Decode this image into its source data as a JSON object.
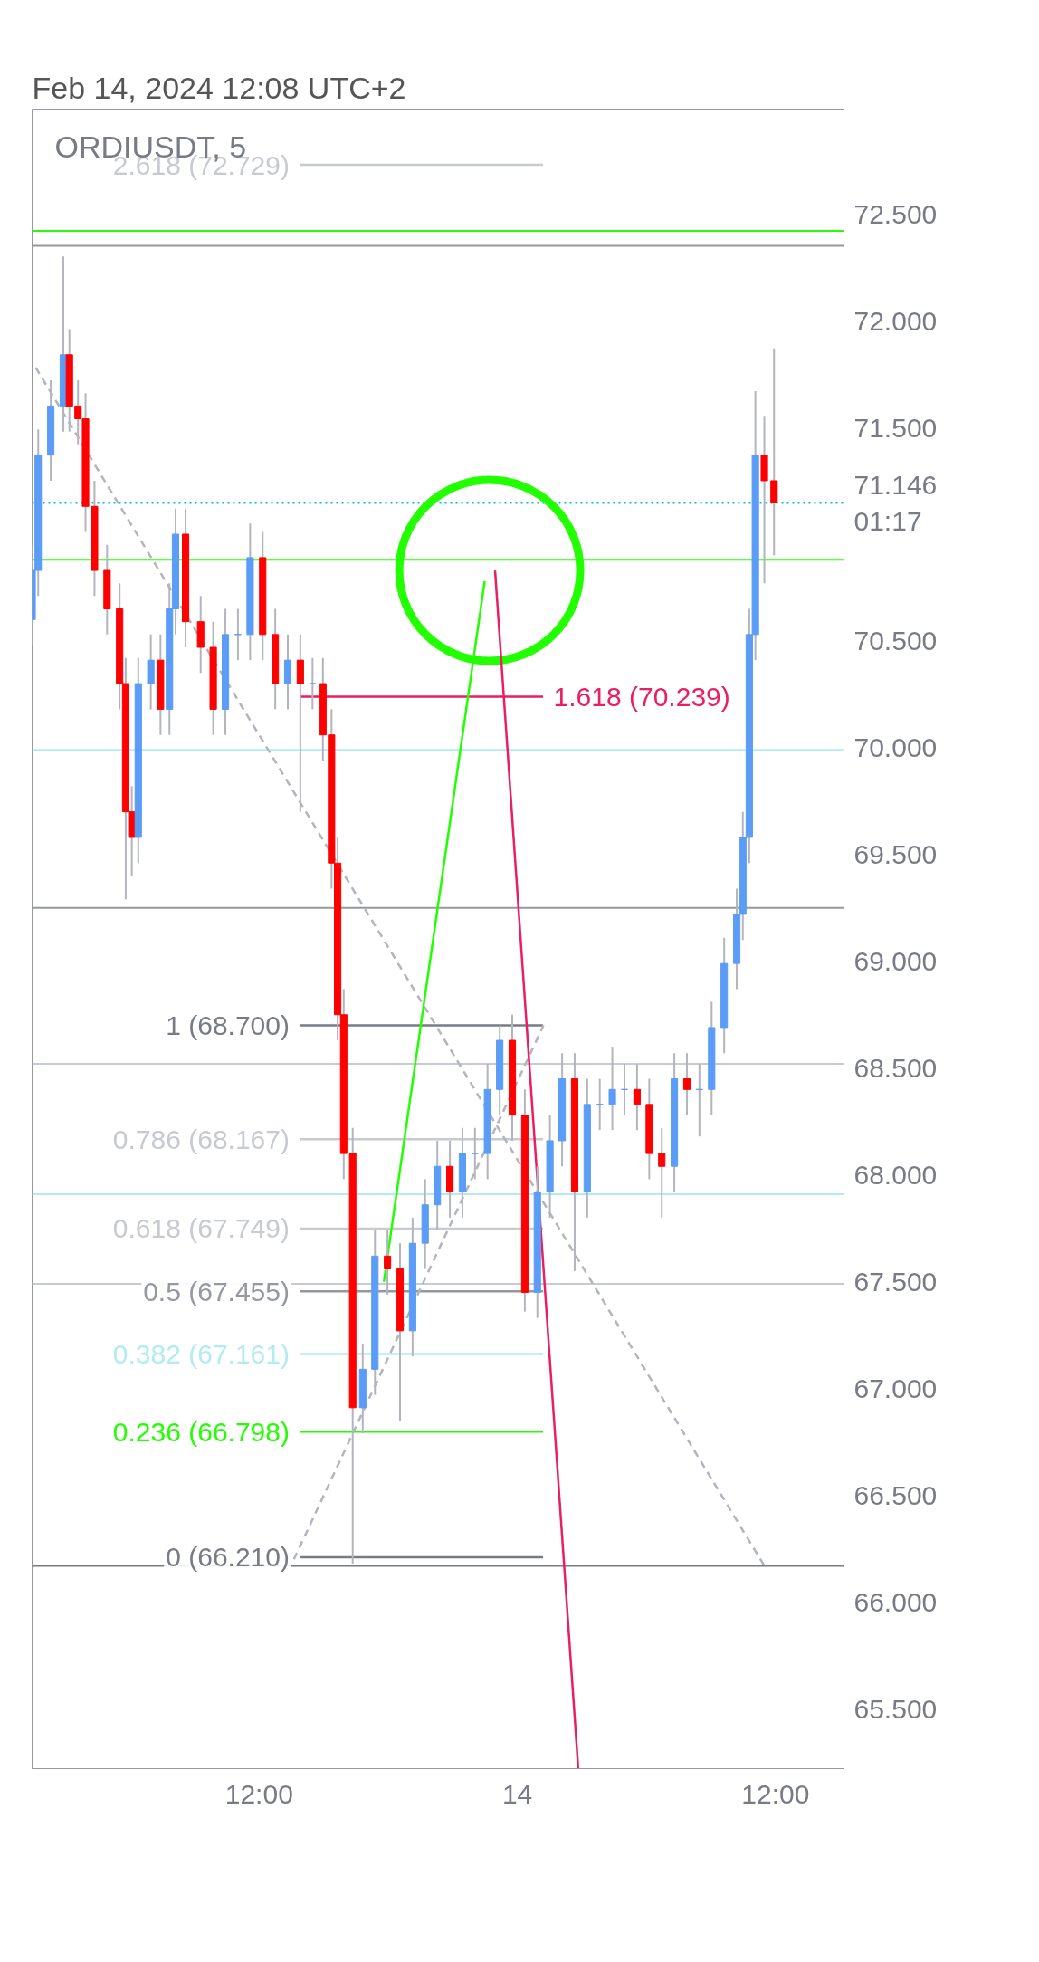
{
  "chart_data": {
    "type": "candlestick",
    "title": "ORDIUSDT, 5",
    "annotations": [
      "Feb 14, 2024 12:08 UTC+2"
    ],
    "x": [
      "2024-02-13T01:27",
      "2024-02-13T01:44",
      "2024-02-13T02:19",
      "2024-02-13T02:54",
      "2024-02-13T03:11",
      "2024-02-13T03:35",
      "2024-02-13T03:56",
      "2024-02-13T04:21",
      "2024-02-13T04:56",
      "2024-02-13T05:31",
      "2024-02-13T05:48",
      "2024-02-13T06:05",
      "2024-02-13T06:23",
      "2024-02-13T06:58",
      "2024-02-13T07:25",
      "2024-02-13T07:50",
      "2024-02-13T08:07",
      "2024-02-13T08:35",
      "2024-02-13T09:17",
      "2024-02-13T09:52",
      "2024-02-13T10:26",
      "2024-02-13T11:01",
      "2024-02-13T11:35",
      "2024-02-13T12:10",
      "2024-02-13T12:45",
      "2024-02-13T13:20",
      "2024-02-13T13:55",
      "2024-02-13T14:29",
      "2024-02-13T14:58",
      "2024-02-13T15:22",
      "2024-02-13T15:39",
      "2024-02-13T15:56",
      "2024-02-13T16:21",
      "2024-02-13T16:49",
      "2024-02-13T17:23",
      "2024-02-13T17:58",
      "2024-02-13T18:33",
      "2024-02-13T19:08",
      "2024-02-13T19:43",
      "2024-02-13T20:17",
      "2024-02-13T20:52",
      "2024-02-13T21:27",
      "2024-02-13T22:02",
      "2024-02-13T22:37",
      "2024-02-13T23:11",
      "2024-02-13T23:46",
      "2024-02-14T00:21",
      "2024-02-14T00:56",
      "2024-02-14T01:31",
      "2024-02-14T02:05",
      "2024-02-14T02:40",
      "2024-02-14T03:15",
      "2024-02-14T03:50",
      "2024-02-14T04:25",
      "2024-02-14T04:59",
      "2024-02-14T05:34",
      "2024-02-14T06:08",
      "2024-02-14T06:43",
      "2024-02-14T07:18",
      "2024-02-14T07:53",
      "2024-02-14T08:28",
      "2024-02-14T09:02",
      "2024-02-14T09:37",
      "2024-02-14T10:12",
      "2024-02-14T10:29",
      "2024-02-14T10:47",
      "2024-02-14T11:04",
      "2024-02-14T11:29",
      "2024-02-14T11:56"
    ],
    "ohlc": [
      [
        70.6,
        70.95,
        70.48,
        70.83
      ],
      [
        70.83,
        71.49,
        70.71,
        71.37
      ],
      [
        71.37,
        71.72,
        71.25,
        71.6
      ],
      [
        71.6,
        72.3,
        71.48,
        71.84
      ],
      [
        71.84,
        71.96,
        71.48,
        71.6
      ],
      [
        71.6,
        71.72,
        71.42,
        71.54
      ],
      [
        71.54,
        71.66,
        71.01,
        71.13
      ],
      [
        71.13,
        71.25,
        70.71,
        70.83
      ],
      [
        70.83,
        70.95,
        70.53,
        70.65
      ],
      [
        70.65,
        70.77,
        70.18,
        70.3
      ],
      [
        70.3,
        70.42,
        69.29,
        69.7
      ],
      [
        69.7,
        69.82,
        69.4,
        69.58
      ],
      [
        69.58,
        70.42,
        69.46,
        70.3
      ],
      [
        70.3,
        70.53,
        70.18,
        70.41
      ],
      [
        70.41,
        70.53,
        70.06,
        70.18
      ],
      [
        70.18,
        70.77,
        70.06,
        70.65
      ],
      [
        70.65,
        71.12,
        70.53,
        71.0
      ],
      [
        71.0,
        71.12,
        70.47,
        70.59
      ],
      [
        70.59,
        70.71,
        70.35,
        70.47
      ],
      [
        70.47,
        70.59,
        70.06,
        70.18
      ],
      [
        70.18,
        70.65,
        70.06,
        70.53
      ],
      [
        70.53,
        70.65,
        70.41,
        70.53
      ],
      [
        70.53,
        71.05,
        70.41,
        70.89
      ],
      [
        70.89,
        71.01,
        70.41,
        70.53
      ],
      [
        70.53,
        70.65,
        70.18,
        70.3
      ],
      [
        70.3,
        70.53,
        70.18,
        70.41
      ],
      [
        70.41,
        70.53,
        69.7,
        70.3
      ],
      [
        70.3,
        70.42,
        70.18,
        70.3
      ],
      [
        70.3,
        70.42,
        69.94,
        70.06
      ],
      [
        70.06,
        70.18,
        69.34,
        69.46
      ],
      [
        69.46,
        69.58,
        68.63,
        68.75
      ],
      [
        68.75,
        68.87,
        67.98,
        68.1
      ],
      [
        68.1,
        68.22,
        66.18,
        66.91
      ],
      [
        66.91,
        67.21,
        66.79,
        67.09
      ],
      [
        67.09,
        67.74,
        66.97,
        67.62
      ],
      [
        67.62,
        67.74,
        67.44,
        67.56
      ],
      [
        67.56,
        67.68,
        66.85,
        67.27
      ],
      [
        67.27,
        67.8,
        67.15,
        67.68
      ],
      [
        67.68,
        67.98,
        67.56,
        67.86
      ],
      [
        67.86,
        68.16,
        67.74,
        68.04
      ],
      [
        68.04,
        68.16,
        67.8,
        67.92
      ],
      [
        67.92,
        68.22,
        67.8,
        68.1
      ],
      [
        68.1,
        68.22,
        67.98,
        68.1
      ],
      [
        68.1,
        68.52,
        67.98,
        68.4
      ],
      [
        68.4,
        68.7,
        68.28,
        68.63
      ],
      [
        68.63,
        68.75,
        68.16,
        68.28
      ],
      [
        68.28,
        68.4,
        67.36,
        67.45
      ],
      [
        67.45,
        68.04,
        67.33,
        67.92
      ],
      [
        67.92,
        68.28,
        67.8,
        68.16
      ],
      [
        68.16,
        68.57,
        68.04,
        68.45
      ],
      [
        68.45,
        68.57,
        67.55,
        67.92
      ],
      [
        67.92,
        68.45,
        67.8,
        68.33
      ],
      [
        68.33,
        68.45,
        68.21,
        68.33
      ],
      [
        68.33,
        68.6,
        68.21,
        68.4
      ],
      [
        68.4,
        68.52,
        68.28,
        68.4
      ],
      [
        68.4,
        68.52,
        68.21,
        68.33
      ],
      [
        68.33,
        68.45,
        67.98,
        68.1
      ],
      [
        68.1,
        68.22,
        67.8,
        68.04
      ],
      [
        68.04,
        68.57,
        67.92,
        68.45
      ],
      [
        68.45,
        68.57,
        68.28,
        68.4
      ],
      [
        68.4,
        68.52,
        68.18,
        68.4
      ],
      [
        68.4,
        68.81,
        68.28,
        68.69
      ],
      [
        68.69,
        69.11,
        68.57,
        68.99
      ],
      [
        68.99,
        69.34,
        68.87,
        69.22
      ],
      [
        69.22,
        69.7,
        69.1,
        69.58
      ],
      [
        69.58,
        70.65,
        69.46,
        70.53
      ],
      [
        70.53,
        71.67,
        70.41,
        71.37
      ],
      [
        71.37,
        71.55,
        70.77,
        71.25
      ],
      [
        71.25,
        71.87,
        70.9,
        71.146
      ]
    ],
    "colors": [
      "#5b9cf6",
      "#5b9cf6",
      "#5b9cf6",
      "#5b9cf6",
      "#ff0000",
      "#ff0000",
      "#ff0000",
      "#ff0000",
      "#ff0000",
      "#ff0000",
      "#ff0000",
      "#ff0000",
      "#5b9cf6",
      "#5b9cf6",
      "#ff0000",
      "#5b9cf6",
      "#5b9cf6",
      "#ff0000",
      "#ff0000",
      "#ff0000",
      "#5b9cf6",
      "#5b9cf6",
      "#5b9cf6",
      "#ff0000",
      "#ff0000",
      "#5b9cf6",
      "#ff0000",
      "#5b9cf6",
      "#ff0000",
      "#ff0000",
      "#ff0000",
      "#ff0000",
      "#ff0000",
      "#5b9cf6",
      "#5b9cf6",
      "#ff0000",
      "#ff0000",
      "#5b9cf6",
      "#5b9cf6",
      "#5b9cf6",
      "#ff0000",
      "#5b9cf6",
      "#5b9cf6",
      "#5b9cf6",
      "#5b9cf6",
      "#ff0000",
      "#ff0000",
      "#5b9cf6",
      "#5b9cf6",
      "#5b9cf6",
      "#ff0000",
      "#5b9cf6",
      "#5b9cf6",
      "#5b9cf6",
      "#5b9cf6",
      "#ff0000",
      "#ff0000",
      "#ff0000",
      "#5b9cf6",
      "#ff0000",
      "#5b9cf6",
      "#5b9cf6",
      "#5b9cf6",
      "#5b9cf6",
      "#5b9cf6",
      "#5b9cf6",
      "#5b9cf6",
      "#ff0000",
      "#ff0000"
    ],
    "series": [
      {
        "type": "line",
        "name": "2.618 (72.729)",
        "color": "#c8cad2",
        "x": [
          "2024-02-13T13:54",
          "2024-02-14T01:12"
        ],
        "values": [
          72.729,
          72.729
        ]
      },
      {
        "type": "line",
        "name": "1.618 (70.239)",
        "color": "#e91e63",
        "x": [
          "2024-02-13T13:54",
          "2024-02-14T01:12"
        ],
        "values": [
          70.239,
          70.239
        ]
      },
      {
        "type": "line",
        "name": "1 (68.700)",
        "color": "#787b86",
        "x": [
          "2024-02-13T13:54",
          "2024-02-14T01:12"
        ],
        "values": [
          68.7,
          68.7
        ]
      },
      {
        "type": "line",
        "name": "0.786 (68.167)",
        "color": "#c8cad2",
        "x": [
          "2024-02-13T13:54",
          "2024-02-14T01:12"
        ],
        "values": [
          68.167,
          68.167
        ]
      },
      {
        "type": "line",
        "name": "0.618 (67.749)",
        "color": "#c8cad2",
        "x": [
          "2024-02-13T13:54",
          "2024-02-14T01:12"
        ],
        "values": [
          67.749,
          67.749
        ]
      },
      {
        "type": "line",
        "name": "0.5 (67.455)",
        "color": "#9598a1",
        "x": [
          "2024-02-13T13:54",
          "2024-02-14T01:12"
        ],
        "values": [
          67.455,
          67.455
        ]
      },
      {
        "type": "line",
        "name": "0.382 (67.161)",
        "color": "#b2ebf2",
        "x": [
          "2024-02-13T13:54",
          "2024-02-14T01:12"
        ],
        "values": [
          67.161,
          67.161
        ]
      },
      {
        "type": "line",
        "name": "0.236 (66.798)",
        "color": "#22ff00",
        "x": [
          "2024-02-13T13:54",
          "2024-02-14T01:12"
        ],
        "values": [
          66.798,
          66.798
        ]
      },
      {
        "type": "line",
        "name": "0 (66.210)",
        "color": "#787b86",
        "x": [
          "2024-02-13T13:54",
          "2024-02-14T01:12"
        ],
        "values": [
          66.21,
          66.21
        ]
      },
      {
        "type": "line",
        "color": "#b2b5be",
        "line_style": "dashed",
        "x": [
          "2024-02-13T01:37",
          "2024-02-14T11:29"
        ],
        "values": [
          71.78,
          66.17
        ]
      },
      {
        "type": "line",
        "color": "#b2b5be",
        "line_style": "dashed",
        "x": [
          "2024-02-13T13:37",
          "2024-02-14T01:13"
        ],
        "values": [
          66.2,
          68.7
        ]
      },
      {
        "type": "line",
        "color": "#22ff00",
        "x": [
          "2024-02-13T17:48",
          "2024-02-13T22:29"
        ],
        "values": [
          67.5,
          70.78
        ]
      },
      {
        "type": "line",
        "color": "#e91e63",
        "x": [
          "2024-02-13T22:58",
          "2024-02-14T02:50"
        ],
        "values": [
          70.83,
          65.22
        ]
      }
    ],
    "ref_lines": [
      {
        "axis": "y",
        "value": 72.42,
        "color": "#22ff00"
      },
      {
        "axis": "y",
        "value": 72.35,
        "color": "#9598a1"
      },
      {
        "axis": "y",
        "value": 70.88,
        "color": "#22ff00"
      },
      {
        "axis": "y",
        "value": 69.99,
        "color": "#b2ebf2"
      },
      {
        "axis": "y",
        "value": 69.25,
        "color": "#9598a1"
      },
      {
        "axis": "y",
        "value": 68.52,
        "color": "#c8cad2"
      },
      {
        "axis": "y",
        "value": 67.91,
        "color": "#b2ebf2"
      },
      {
        "axis": "y",
        "value": 67.49,
        "color": "#c8cad2"
      },
      {
        "axis": "y",
        "value": 66.17,
        "color": "#787b86"
      },
      {
        "axis": "y",
        "value": 71.146,
        "color": "#00bcd4",
        "line_style": "dotted",
        "label": "71.146\n01:17"
      }
    ],
    "xlim": [
      "2024-02-13T01:27",
      "2024-02-14T15:11"
    ],
    "ylim": [
      65.22,
      72.99
    ],
    "xticks": [
      {
        "value": "2024-02-13T12:00",
        "label": "12:00"
      },
      {
        "value": "2024-02-14",
        "label": "14"
      },
      {
        "value": "2024-02-14T12:00",
        "label": "12:00"
      }
    ],
    "yticks": [
      {
        "value": 65.5,
        "label": "65.500"
      },
      {
        "value": 66,
        "label": "66.000"
      },
      {
        "value": 66.5,
        "label": "66.500"
      },
      {
        "value": 67,
        "label": "67.000"
      },
      {
        "value": 67.5,
        "label": "67.500"
      },
      {
        "value": 68,
        "label": "68.000"
      },
      {
        "value": 68.5,
        "label": "68.500"
      },
      {
        "value": 69,
        "label": "69.000"
      },
      {
        "value": 69.5,
        "label": "69.500"
      },
      {
        "value": 70,
        "label": "70.000"
      },
      {
        "value": 70.5,
        "label": "70.500"
      },
      {
        "value": 71.5,
        "label": "71.500"
      },
      {
        "value": 72,
        "label": "72.000"
      },
      {
        "value": 72.5,
        "label": "72.500"
      }
    ],
    "grid": false
  }
}
